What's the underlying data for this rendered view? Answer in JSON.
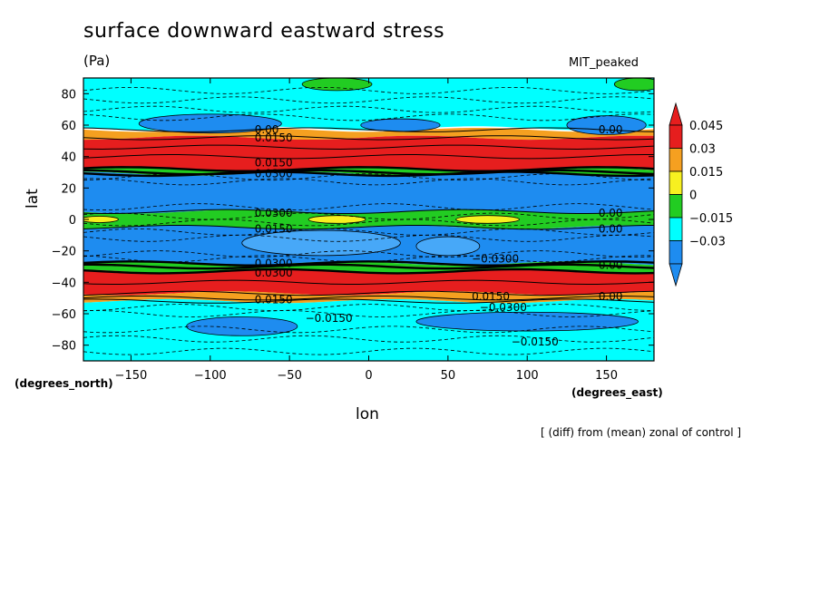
{
  "chart_data": {
    "type": "heatmap",
    "title": "surface downward eastward stress",
    "units": "(Pa)",
    "model": "MIT_peaked",
    "xlabel": "lon",
    "xlabel_unit": "(degrees_east)",
    "ylabel": "lat",
    "ylabel_unit": "(degrees_north)",
    "footnote": "[ (diff) from (mean) zonal of control ]",
    "xlim": [
      -180,
      180
    ],
    "ylim": [
      -90,
      90
    ],
    "xticks": [
      -150,
      -100,
      -50,
      0,
      50,
      100,
      150
    ],
    "yticks": [
      -80,
      -60,
      -40,
      -20,
      0,
      20,
      40,
      60,
      80
    ],
    "colorbar": {
      "levels": [
        0.045,
        0.03,
        0.015,
        0,
        -0.015,
        -0.03
      ],
      "colors": [
        "#e61e1e",
        "#f5a020",
        "#f7f020",
        "#22cc22",
        "#00ffff",
        "#1e8cf0"
      ],
      "labels": [
        "0.045",
        "0.03",
        "0.015",
        "0",
        "−0.015",
        "−0.03"
      ]
    },
    "bands": [
      {
        "lat_top": 90,
        "lat_bottom": 58,
        "class": "-0.015 to 0",
        "color": "#00ffff"
      },
      {
        "lat_top": 57,
        "lat_bottom": 52,
        "class": "0.015 to 0.03",
        "color": "#f5a020"
      },
      {
        "lat_top": 52,
        "lat_bottom": 32,
        "class": "> 0.045",
        "color": "#e61e1e"
      },
      {
        "lat_top": 32,
        "lat_bottom": 29,
        "class": "0 to 0.015",
        "color": "#22cc22"
      },
      {
        "lat_top": 29,
        "lat_bottom": 5,
        "class": "< -0.03",
        "color": "#1e8cf0"
      },
      {
        "lat_top": 5,
        "lat_bottom": -5,
        "class": "0 to 0.015",
        "color": "#22cc22"
      },
      {
        "lat_top": -5,
        "lat_bottom": -28,
        "class": "< -0.03",
        "color": "#1e8cf0"
      },
      {
        "lat_top": -28,
        "lat_bottom": -33,
        "class": "0 to 0.015",
        "color": "#22cc22"
      },
      {
        "lat_top": -33,
        "lat_bottom": -47,
        "class": "> 0.045",
        "color": "#e61e1e"
      },
      {
        "lat_top": -47,
        "lat_bottom": -52,
        "class": "0.015 to 0.03",
        "color": "#f5a020"
      },
      {
        "lat_top": -52,
        "lat_bottom": -90,
        "class": "-0.015 to 0",
        "color": "#00ffff"
      }
    ],
    "patches": [
      {
        "lon": -100,
        "lat": 61,
        "rlon": 45,
        "rlat": 6,
        "color": "#1e8cf0"
      },
      {
        "lon": 20,
        "lat": 60,
        "rlon": 25,
        "rlat": 4,
        "color": "#1e8cf0"
      },
      {
        "lon": 150,
        "lat": 60,
        "rlon": 25,
        "rlat": 6,
        "color": "#1e8cf0"
      },
      {
        "lon": -20,
        "lat": 86,
        "rlon": 22,
        "rlat": 4,
        "color": "#22cc22"
      },
      {
        "lon": 170,
        "lat": 86,
        "rlon": 15,
        "rlat": 4,
        "color": "#22cc22"
      },
      {
        "lon": -170,
        "lat": 0,
        "rlon": 12,
        "rlat": 2,
        "color": "#f7f020"
      },
      {
        "lon": -20,
        "lat": 0,
        "rlon": 18,
        "rlat": 2.5,
        "color": "#f7f020"
      },
      {
        "lon": 75,
        "lat": 0,
        "rlon": 20,
        "rlat": 2.5,
        "color": "#f7f020"
      },
      {
        "lon": -30,
        "lat": -15,
        "rlon": 50,
        "rlat": 8,
        "color": "#47a8f8"
      },
      {
        "lon": 50,
        "lat": -17,
        "rlon": 20,
        "rlat": 6,
        "color": "#47a8f8"
      },
      {
        "lon": -80,
        "lat": -68,
        "rlon": 35,
        "rlat": 6,
        "color": "#1e8cf0"
      },
      {
        "lon": 100,
        "lat": -65,
        "rlon": 70,
        "rlat": 6,
        "color": "#1e8cf0"
      }
    ],
    "contour_labels": [
      {
        "lon": -72,
        "lat": 57,
        "text": "0.00"
      },
      {
        "lon": -72,
        "lat": 52,
        "text": "0.0150"
      },
      {
        "lon": -72,
        "lat": 36,
        "text": "0.0150"
      },
      {
        "lon": -72,
        "lat": 29,
        "text": "0.0300"
      },
      {
        "lon": -72,
        "lat": 4,
        "text": "0.0300"
      },
      {
        "lon": -72,
        "lat": -6,
        "text": "0.0150"
      },
      {
        "lon": -72,
        "lat": -28,
        "text": "0.0300"
      },
      {
        "lon": -72,
        "lat": -34,
        "text": "0.0300"
      },
      {
        "lon": -72,
        "lat": -51,
        "text": "0.0150"
      },
      {
        "lon": -40,
        "lat": -63,
        "text": "−0.0150"
      },
      {
        "lon": 65,
        "lat": -25,
        "text": "−0.0300"
      },
      {
        "lon": 65,
        "lat": -49,
        "text": "0.0150"
      },
      {
        "lon": 70,
        "lat": -56,
        "text": "−0.0300"
      },
      {
        "lon": 90,
        "lat": -78,
        "text": "−0.0150"
      },
      {
        "lon": 145,
        "lat": 57,
        "text": "0.00"
      },
      {
        "lon": 145,
        "lat": 4,
        "text": "0.00"
      },
      {
        "lon": 145,
        "lat": -6,
        "text": "0.00"
      },
      {
        "lon": 145,
        "lat": -29,
        "text": "0.00"
      },
      {
        "lon": 145,
        "lat": -49,
        "text": "0.00"
      }
    ]
  }
}
